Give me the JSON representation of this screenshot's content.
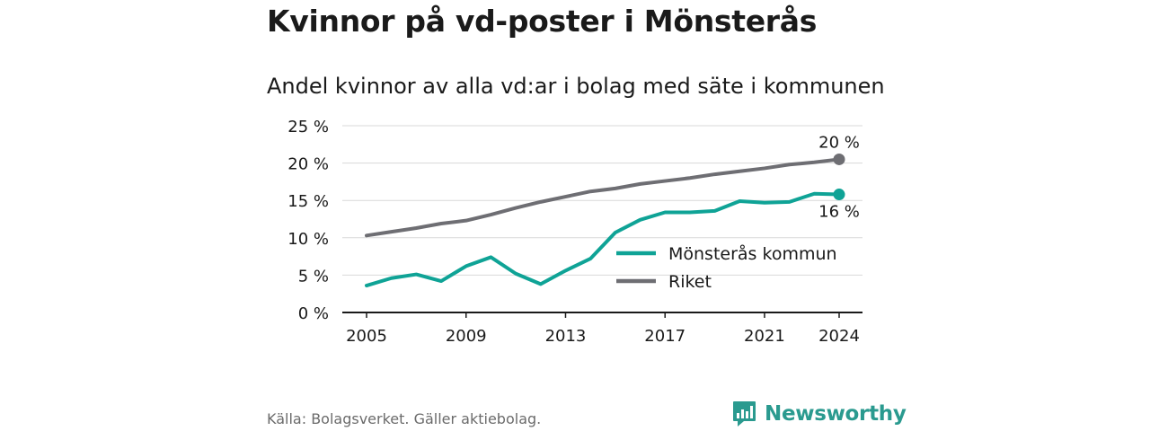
{
  "title": "Kvinnor på vd-poster i Mönsterås",
  "subtitle": "Andel kvinnor av alla vd:ar i bolag med säte i kommunen",
  "source": "Källa: Bolagsverket. Gäller aktiebolag.",
  "brand": "Newsworthy",
  "colors": {
    "kommun": "#0fa396",
    "riket": "#6e6e73",
    "brand": "#2a9a8f",
    "grid": "#d9d9d9"
  },
  "chart_data": {
    "type": "line",
    "x": [
      2005,
      2006,
      2007,
      2008,
      2009,
      2010,
      2011,
      2012,
      2013,
      2014,
      2015,
      2016,
      2017,
      2018,
      2019,
      2020,
      2021,
      2022,
      2023,
      2024
    ],
    "series": [
      {
        "name": "Mönsterås kommun",
        "values": [
          3.6,
          4.6,
          5.1,
          4.2,
          6.2,
          7.4,
          5.2,
          3.8,
          5.6,
          7.2,
          10.7,
          12.4,
          13.4,
          13.4,
          13.6,
          14.9,
          14.7,
          14.8,
          15.9,
          15.8
        ],
        "end_label": "16 %"
      },
      {
        "name": "Riket",
        "values": [
          10.3,
          10.8,
          11.3,
          11.9,
          12.3,
          13.1,
          14.0,
          14.8,
          15.5,
          16.2,
          16.6,
          17.2,
          17.6,
          18.0,
          18.5,
          18.9,
          19.3,
          19.8,
          20.1,
          20.5
        ],
        "end_label": "20 %"
      }
    ],
    "y_ticks": [
      "0 %",
      "5 %",
      "10 %",
      "15 %",
      "20 %",
      "25 %"
    ],
    "x_ticks": [
      "2005",
      "2009",
      "2013",
      "2017",
      "2021",
      "2024"
    ],
    "ylim": [
      0,
      25
    ],
    "xlim": [
      2005,
      2024
    ],
    "grid": true,
    "legend": "inside-right"
  }
}
